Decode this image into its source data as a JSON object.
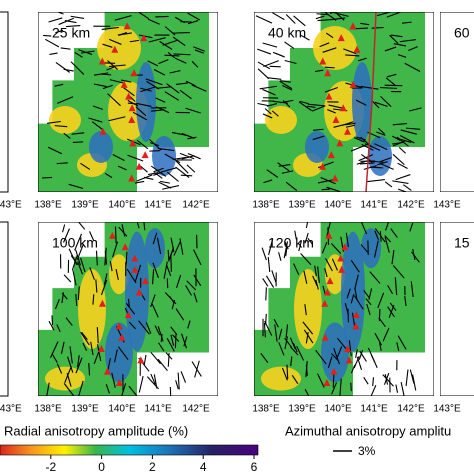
{
  "panels": [
    {
      "label": "25 km"
    },
    {
      "label": "40 km"
    },
    {
      "label": "60"
    },
    {
      "label": "100 km"
    },
    {
      "label": "120 km"
    },
    {
      "label": "15"
    }
  ],
  "x_labels_top": [
    "143°E",
    "138°E",
    "139°E",
    "140°E",
    "141°E",
    "142°E",
    "138°E",
    "139°E",
    "140°E",
    "141°E",
    "142°E",
    "143°E"
  ],
  "x_labels_bottom": [
    "143°E",
    "138°E",
    "139°E",
    "140°E",
    "141°E",
    "142°E",
    "138°E",
    "139°E",
    "140°E",
    "141°E",
    "142°E",
    "143°E"
  ],
  "colorbar": {
    "label": "Radial anisotropy amplitude (%)",
    "ticks": [
      -2,
      0,
      2,
      4,
      6
    ]
  },
  "azimuthal_legend": {
    "label": "Azimuthal anisotropy amplitu",
    "scale": "3%"
  }
}
